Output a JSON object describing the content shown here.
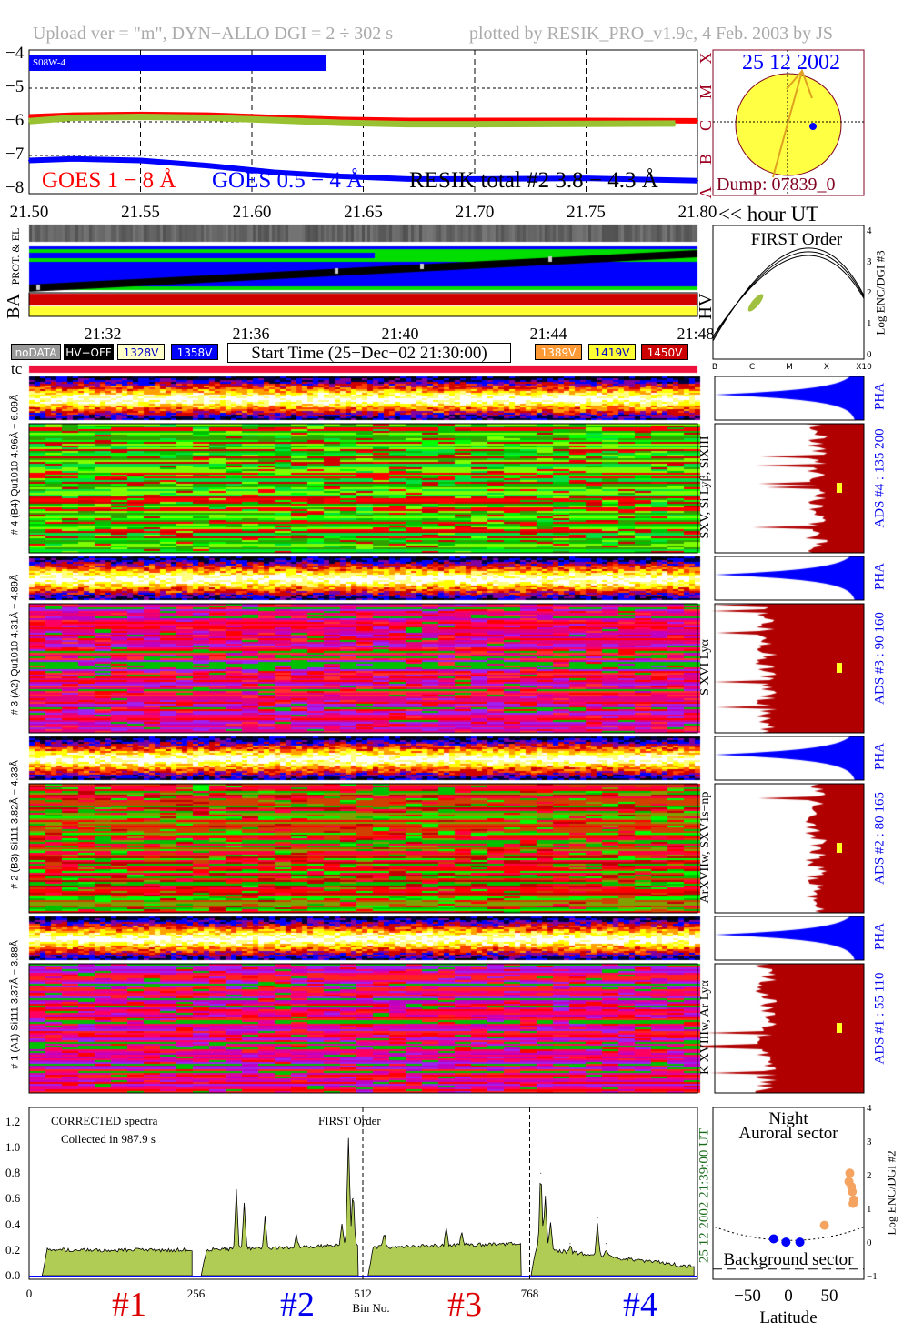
{
  "header": {
    "left": "Upload ver = \"m\", DYN−ALLO DGI =   2 ÷ 302 s",
    "right": "plotted by RESIK_PRO_v1.9c, 4 Feb. 2003 by JS"
  },
  "goes": {
    "tag": "S08W-4",
    "legend": [
      "GOES 1 − 8 Å",
      "GOES 0.5 − 4 Å",
      "RESIK total #2  3.8 − 4.3 Å"
    ],
    "classes": [
      "A",
      "B",
      "C",
      "M",
      "X"
    ],
    "yticks": [
      "−4",
      "−5",
      "−6",
      "−7",
      "−8"
    ],
    "xticks": [
      "21.50",
      "21.55",
      "21.60",
      "21.65",
      "21.70",
      "21.75",
      "21.80"
    ],
    "xunit": "<< hour UT"
  },
  "sun": {
    "date": "25 12 2002",
    "dump": "Dump: 07839_0"
  },
  "status": {
    "prot_label": "PROT. & EL",
    "ba_label": "BA",
    "hv_label": "HV",
    "times": [
      "21:32",
      "21:36",
      "21:40",
      "21:44",
      "21:48"
    ],
    "tc_label": "tc"
  },
  "legend": {
    "items": [
      {
        "label": "noDATA",
        "color": "#999999",
        "text": "#ffffff"
      },
      {
        "label": "HV−OFF",
        "color": "#000000",
        "text": "#ffffff"
      },
      {
        "label": "1328V",
        "color": "#ffffc8",
        "text": "#0000cc"
      },
      {
        "label": "1358V",
        "color": "#0000ff",
        "text": "#ffffff"
      },
      {
        "label": "1389V",
        "color": "#ff9933",
        "text": "#ffffff"
      },
      {
        "label": "1419V",
        "color": "#ffff33",
        "text": "#0000cc"
      },
      {
        "label": "1450V",
        "color": "#cc0000",
        "text": "#ffffff"
      }
    ],
    "start_time": "Start Time (25−Dec−02 21:30:00)"
  },
  "first_order": {
    "title": "FIRST Order",
    "xticks": [
      "B",
      "C",
      "M",
      "X",
      "X10"
    ],
    "yticks": [
      "0",
      "1",
      "2",
      "3",
      "4"
    ],
    "ylabel": "Log ENC/DGI #3"
  },
  "channels": [
    {
      "label": "# 4 (B4) Qu1010 4.96Å − 6.09Å",
      "lines": "SXV, Si Lyβ, SiXIII",
      "ads": "ADS #4 :  135 200",
      "pha": "PHA"
    },
    {
      "label": "# 3 (A2) Qu1010 4.31Å − 4.89Å",
      "lines": "S XVI Lyα",
      "ads": "ADS #3 :  90 160",
      "pha": "PHA"
    },
    {
      "label": "# 2 (B3) Si111 3.82Å − 4.33Å",
      "lines": "ArXVIIw, SXV1s−np",
      "ads": "ADS #2 :  80 165",
      "pha": "PHA"
    },
    {
      "label": "# 1 (A1) Si111 3.37Å − 3.88Å",
      "lines": "K XVIIIw, Ar Lyα",
      "ads": "ADS #1 :  55 110",
      "pha": "PHA"
    }
  ],
  "spectrum": {
    "note1": "CORRECTED spectra",
    "note2": "Collected in   987.9 s",
    "note3": "FIRST Order",
    "xlabel": "Bin No.",
    "xticks": [
      "0",
      "256",
      "512",
      "768"
    ],
    "yticks": [
      "0.0",
      "0.2",
      "0.4",
      "0.6",
      "0.8",
      "1.0",
      "1.2"
    ],
    "sections": [
      "#1",
      "#2",
      "#3",
      "#4"
    ],
    "stamp": "25 12 2002   21:39:00 UT"
  },
  "latitude": {
    "title1": "Night",
    "title2": "Auroral sector",
    "bottom": "Background sector",
    "xticks": [
      "−50",
      "0",
      "50"
    ],
    "xlabel": "Latitude",
    "yticks": [
      "−1",
      "0",
      "1",
      "2",
      "3",
      "4"
    ],
    "ylabel": "Log ENC/DGI #2"
  },
  "chart_data": [
    {
      "type": "line",
      "title": "",
      "xlabel": "hour UT",
      "ylabel": "",
      "xlim": [
        21.5,
        21.8
      ],
      "ylim": [
        -8,
        -4
      ],
      "grid": true,
      "series": [
        {
          "name": "GOES 1 − 8 Å",
          "color": "#ff0000",
          "x": [
            21.5,
            21.52,
            21.55,
            21.58,
            21.61,
            21.64,
            21.67,
            21.7,
            21.75,
            21.8
          ],
          "y": [
            -5.85,
            -5.8,
            -5.78,
            -5.8,
            -5.87,
            -5.93,
            -5.96,
            -5.96,
            -5.96,
            -5.97
          ]
        },
        {
          "name": "GOES 0.5 − 4 Å",
          "color": "#0000ff",
          "x": [
            21.5,
            21.52,
            21.55,
            21.58,
            21.61,
            21.64,
            21.67,
            21.7,
            21.75,
            21.8
          ],
          "y": [
            -7.15,
            -7.1,
            -7.15,
            -7.3,
            -7.5,
            -7.62,
            -7.7,
            -7.7,
            -7.68,
            -7.75
          ]
        },
        {
          "name": "RESIK total #2  3.8 − 4.3 Å",
          "color": "#99c233",
          "x": [
            21.5,
            21.52,
            21.55,
            21.58,
            21.61,
            21.64,
            21.67,
            21.7,
            21.75,
            21.79
          ],
          "y": [
            -5.98,
            -5.88,
            -5.85,
            -5.88,
            -5.95,
            -6.03,
            -6.07,
            -6.07,
            -6.06,
            -6.05
          ]
        }
      ]
    },
    {
      "type": "area",
      "title": "",
      "xlabel": "Bin No.",
      "xlim": [
        0,
        1024
      ],
      "ylim": [
        0,
        1.3
      ],
      "segments": [
        {
          "from": 20,
          "to": 250,
          "start": 0.2,
          "end": 0.2
        },
        {
          "from": 264,
          "to": 505,
          "start": 0.2,
          "end": 0.24
        },
        {
          "from": 520,
          "to": 755,
          "start": 0.22,
          "end": 0.25
        },
        {
          "from": 770,
          "to": 1020,
          "start": 0.22,
          "end": 0.07
        }
      ],
      "peaks": [
        [
          318,
          0.67
        ],
        [
          330,
          0.55
        ],
        [
          362,
          0.45
        ],
        [
          410,
          0.3
        ],
        [
          480,
          0.38
        ],
        [
          490,
          1.05
        ],
        [
          497,
          0.6
        ],
        [
          545,
          0.31
        ],
        [
          640,
          0.33
        ],
        [
          664,
          0.3
        ],
        [
          785,
          0.8
        ],
        [
          792,
          0.62
        ],
        [
          800,
          0.4
        ],
        [
          830,
          0.25
        ],
        [
          872,
          0.45
        ],
        [
          885,
          0.25
        ]
      ],
      "background_color": "#0000ff",
      "fill": "#b0cc55"
    },
    {
      "type": "scatter",
      "title": "",
      "xlabel": "Latitude",
      "ylabel": "Log ENC/DGI #2",
      "xlim": [
        -90,
        90
      ],
      "ylim": [
        -1,
        4
      ],
      "series": [
        {
          "color": "#0000ff",
          "points": [
            [
              -18,
              0.15
            ],
            [
              -3,
              0.05
            ],
            [
              14,
              0.05
            ]
          ]
        },
        {
          "color": "#f4a460",
          "points": [
            [
              44,
              0.55
            ],
            [
              75,
              2.1
            ],
            [
              74,
              1.85
            ],
            [
              77,
              1.7
            ],
            [
              78,
              1.55
            ],
            [
              80,
              1.3
            ],
            [
              79,
              1.2
            ]
          ]
        }
      ]
    }
  ]
}
